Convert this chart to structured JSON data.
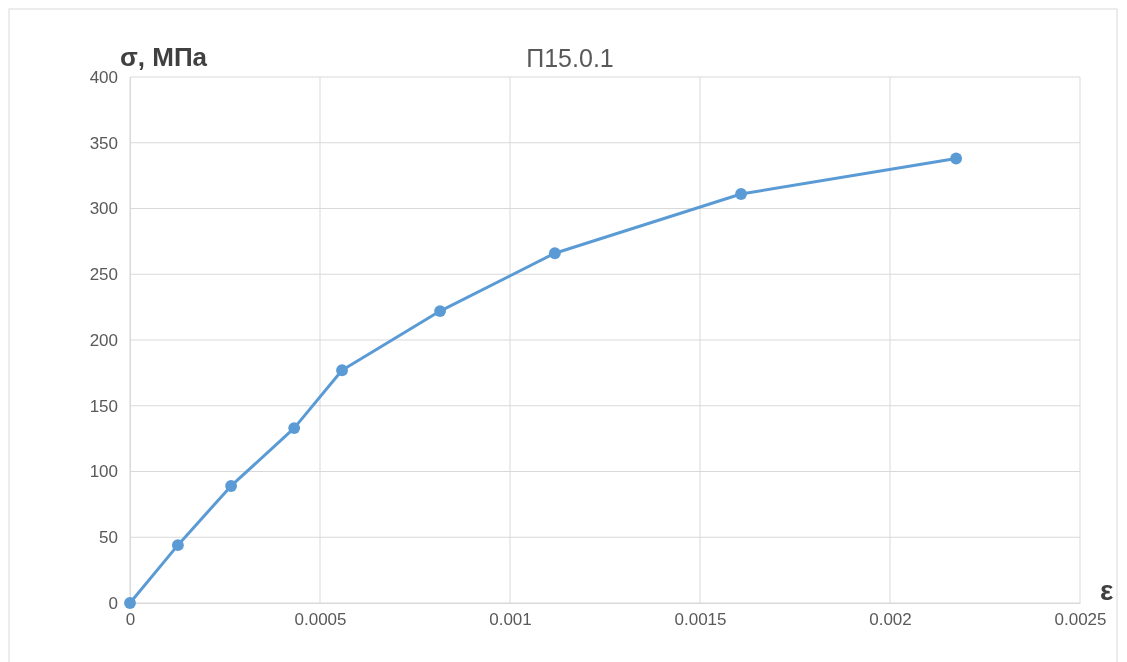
{
  "chart_data": {
    "type": "line",
    "title": "П15.0.1",
    "xlabel": "ε",
    "ylabel": "σ, МПа",
    "x": [
      0,
      0.000126,
      0.000266,
      0.000432,
      0.000558,
      0.000816,
      0.001118,
      0.001608,
      0.002174
    ],
    "series": [
      {
        "color": "#5b9bd5",
        "values": [
          0,
          44,
          89,
          133,
          177,
          222,
          266,
          311,
          338
        ]
      }
    ],
    "xlim": [
      0,
      0.0025
    ],
    "xticks": [
      0,
      0.0005,
      0.001,
      0.0015,
      0.002,
      0.0025
    ],
    "ylim": [
      0,
      400
    ],
    "yticks": [
      0,
      50,
      100,
      150,
      200,
      250,
      300,
      350,
      400
    ],
    "grid": true,
    "marker": "circle",
    "line_style": "solid"
  }
}
